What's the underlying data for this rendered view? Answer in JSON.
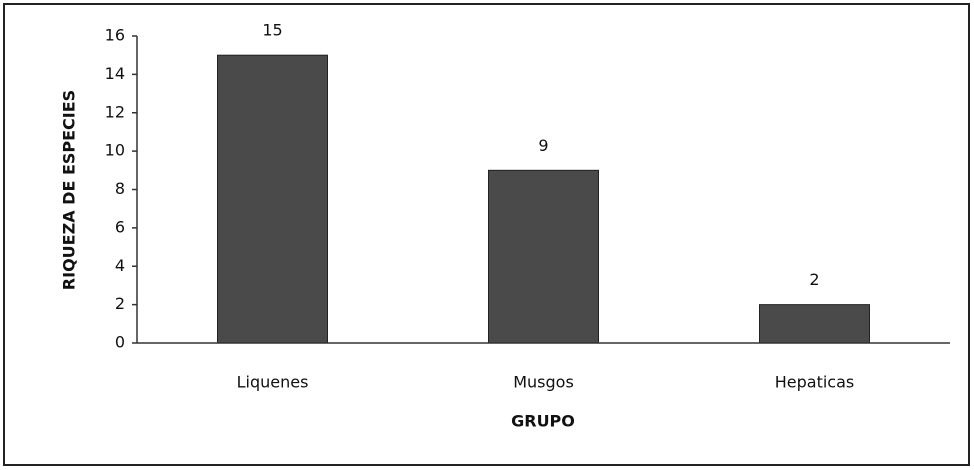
{
  "chart_data": {
    "type": "bar",
    "xlabel": "GRUPO",
    "ylabel": "RIQUEZA DE ESPECIES",
    "categories": [
      "Liquenes",
      "Musgos",
      "Hepaticas"
    ],
    "values": [
      15,
      9,
      2
    ],
    "color": "#4a4a4a",
    "ylim": [
      0,
      16
    ],
    "yticks": [
      0,
      2,
      4,
      6,
      8,
      10,
      12,
      14,
      16
    ],
    "grid": false
  }
}
